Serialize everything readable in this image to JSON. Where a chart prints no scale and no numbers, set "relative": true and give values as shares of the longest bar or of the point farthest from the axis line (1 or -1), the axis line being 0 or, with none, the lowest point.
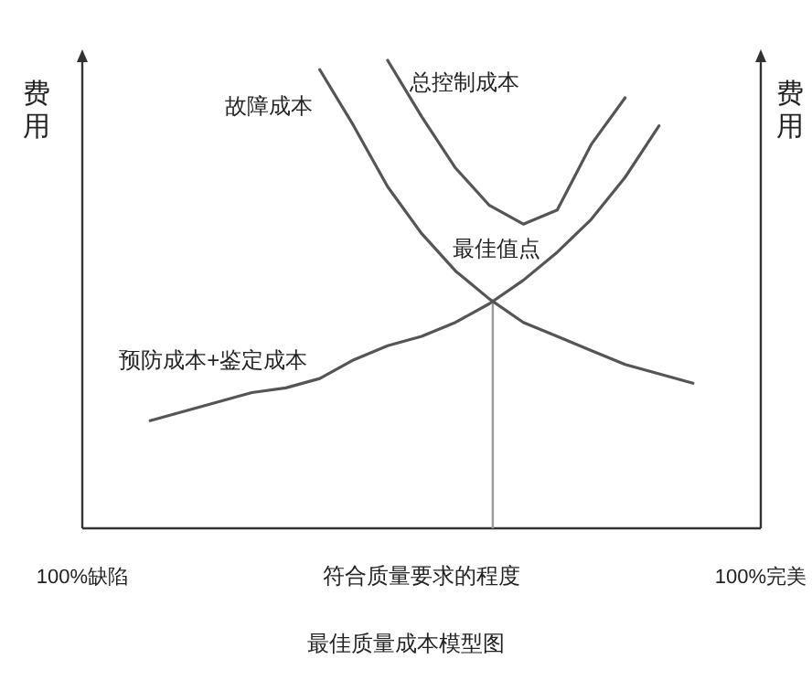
{
  "chart_data": {
    "type": "line",
    "relative": true,
    "title": "最佳质量成本模型图",
    "xlabel": "符合质量要求的程度",
    "ylabel": "费用",
    "y2label": "费用",
    "categories": [
      "100%缺陷",
      null,
      null,
      null,
      null,
      null,
      null,
      null,
      null,
      null,
      null,
      null,
      null,
      null,
      null,
      null,
      null,
      null,
      null,
      null,
      "100%完美"
    ],
    "legend": false,
    "marker": "none",
    "line_style": "solid",
    "series": [
      {
        "name": "预防成本+鉴定成本",
        "color": "#555555",
        "values": [
          null,
          null,
          0.23,
          0.25,
          0.27,
          0.29,
          0.3,
          0.32,
          0.36,
          0.39,
          0.41,
          0.44,
          0.48,
          0.53,
          0.59,
          0.66,
          0.75,
          0.86,
          null,
          null,
          null
        ]
      },
      {
        "name": "故障成本",
        "color": "#555555",
        "values": [
          null,
          null,
          null,
          null,
          null,
          null,
          null,
          0.98,
          0.86,
          0.73,
          0.63,
          0.55,
          0.49,
          0.44,
          0.41,
          0.38,
          0.35,
          0.33,
          0.31,
          null,
          null
        ]
      },
      {
        "name": "总控制成本",
        "color": "#555555",
        "values": [
          null,
          null,
          null,
          null,
          null,
          null,
          null,
          null,
          null,
          1,
          0.88,
          0.77,
          0.69,
          0.65,
          0.68,
          0.82,
          0.92,
          null,
          null,
          null,
          null
        ]
      }
    ],
    "annotations": [
      "最佳值点"
    ]
  }
}
